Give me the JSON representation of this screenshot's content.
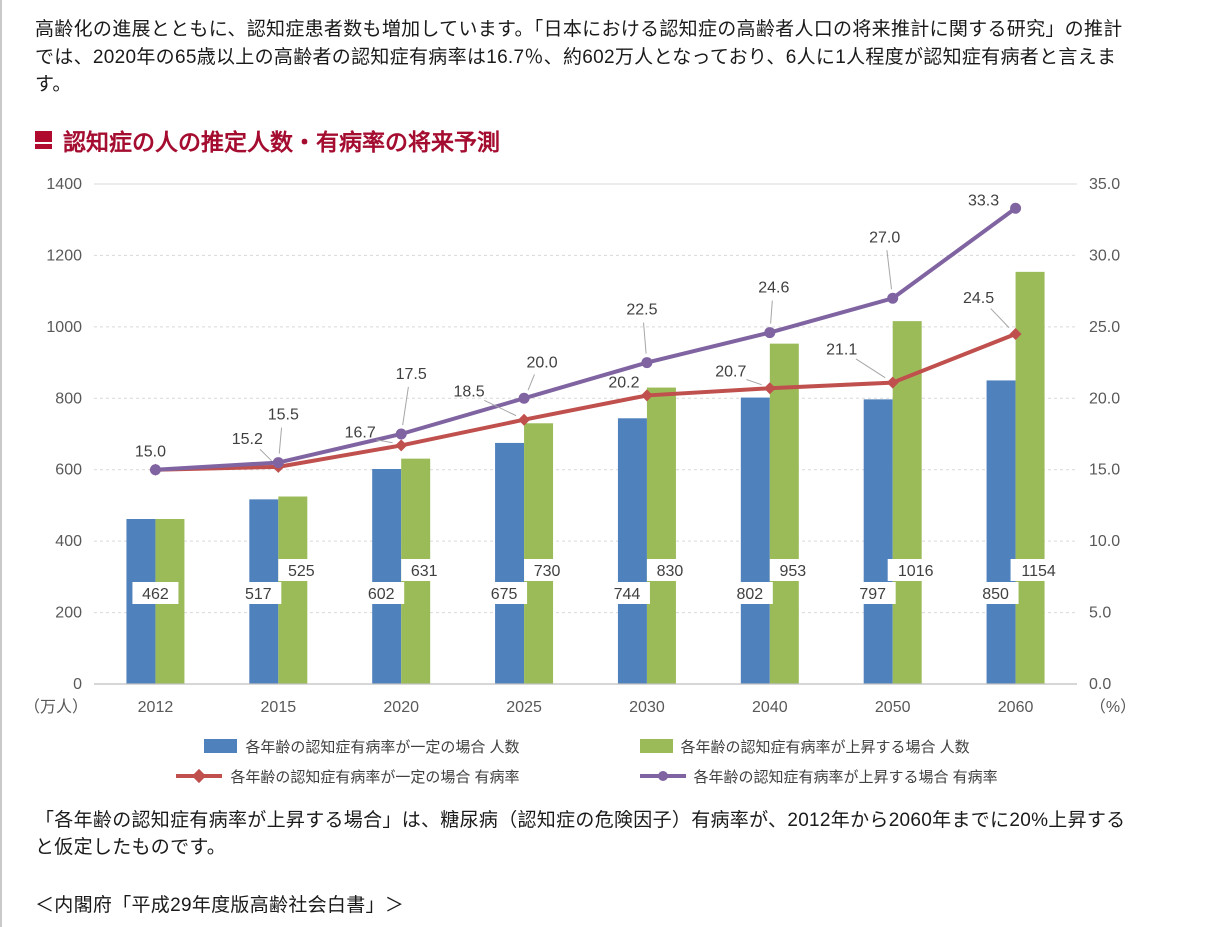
{
  "intro": "高齢化の進展とともに、認知症患者数も増加しています。「日本における認知症の高齢者人口の将来推計に関する研究」の推計では、2020年の65歳以上の高齢者の認知症有病率は16.7％、約602万人となっており、6人に1人程度が認知症有病者と言えます。",
  "heading": "認知症の人の推定人数・有病率の将来予測",
  "heading_color": "#a50d30",
  "chart_data": {
    "type": "bar",
    "subtype": "grouped bars with two overlay lines (dual axis)",
    "categories": [
      "2012",
      "2015",
      "2020",
      "2025",
      "2030",
      "2040",
      "2050",
      "2060"
    ],
    "series": [
      {
        "name": "各年齢の認知症有病率が一定の場合 人数",
        "type": "bar",
        "axis": "left",
        "color": "#4f81bd",
        "values": [
          462,
          517,
          602,
          675,
          744,
          802,
          797,
          850
        ]
      },
      {
        "name": "各年齢の認知症有病率が上昇する場合 人数",
        "type": "bar",
        "axis": "left",
        "color": "#9bbb59",
        "values": [
          462,
          525,
          631,
          730,
          830,
          953,
          1016,
          1154
        ]
      },
      {
        "name": "各年齢の認知症有病率が一定の場合 有病率",
        "type": "line",
        "axis": "right",
        "color": "#c0504d",
        "marker": "diamond",
        "values": [
          15.0,
          15.2,
          16.7,
          18.5,
          20.2,
          20.7,
          21.1,
          24.5
        ]
      },
      {
        "name": "各年齢の認知症有病率が上昇する場合 有病率",
        "type": "line",
        "axis": "right",
        "color": "#8064a2",
        "marker": "circle",
        "values": [
          15.0,
          15.5,
          17.5,
          20.0,
          22.5,
          24.6,
          27.0,
          33.3
        ]
      }
    ],
    "left_axis": {
      "min": 0,
      "max": 1400,
      "step": 200,
      "unit": "（万人）"
    },
    "right_axis": {
      "min": 0,
      "max": 35,
      "step": 5,
      "unit": "（%）",
      "decimals": 1
    },
    "grid": true,
    "legend_position": "bottom"
  },
  "note": "「各年齢の認知症有病率が上昇する場合」は、糖尿病（認知症の危険因子）有病率が、2012年から2060年までに20%上昇すると仮定したものです。",
  "source": "＜内閣府「平成29年度版高齢社会白書」＞"
}
